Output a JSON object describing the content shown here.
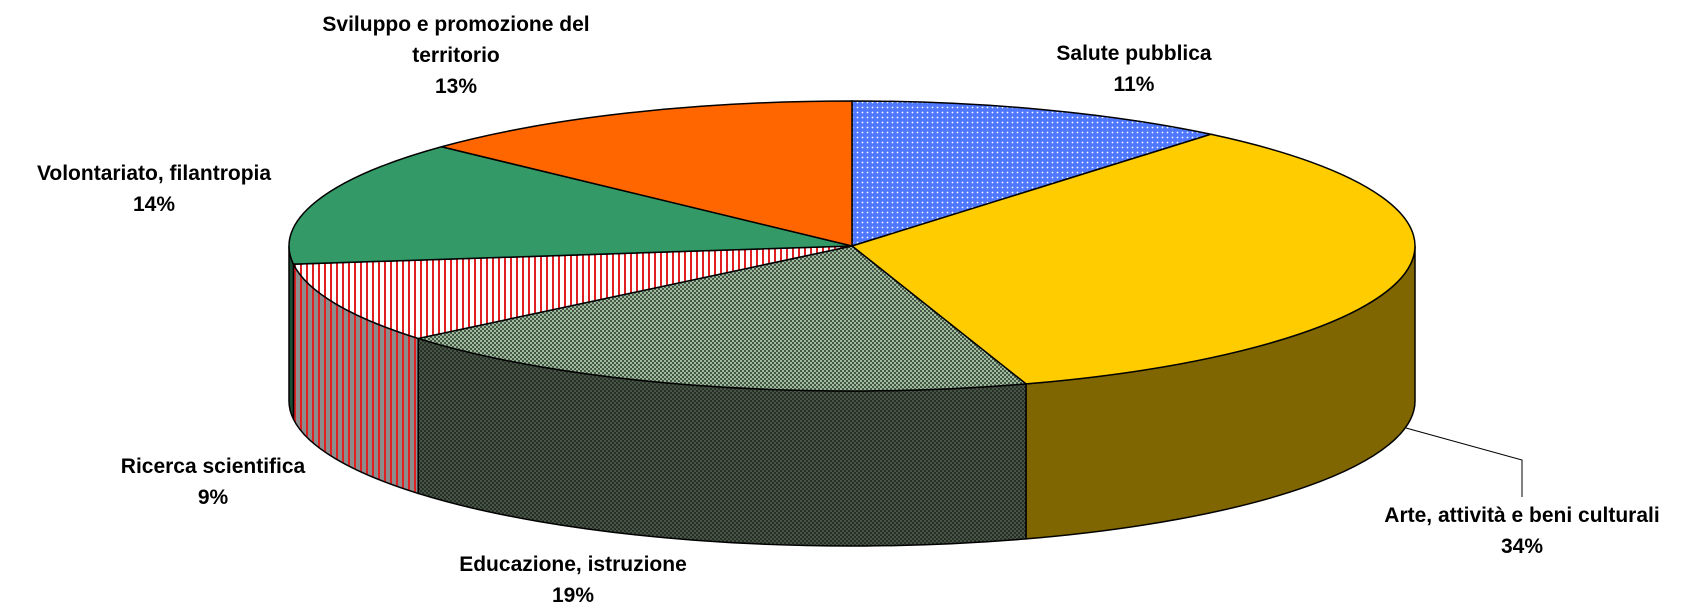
{
  "chart_data": {
    "type": "pie",
    "categories": [
      "Salute pubblica",
      "Arte, attività e beni culturali",
      "Educazione, istruzione",
      "Ricerca scientifica",
      "Volontariato, filantropia",
      "Sviluppo e promozione del territorio"
    ],
    "values": [
      11,
      34,
      19,
      9,
      14,
      13
    ],
    "value_labels": [
      "11%",
      "34%",
      "19%",
      "9%",
      "14%",
      "13%"
    ],
    "colors": [
      "#4f78ff",
      "#ffcc00",
      "#9cbc9c",
      "#e02020",
      "#339966",
      "#ff6600"
    ]
  }
}
